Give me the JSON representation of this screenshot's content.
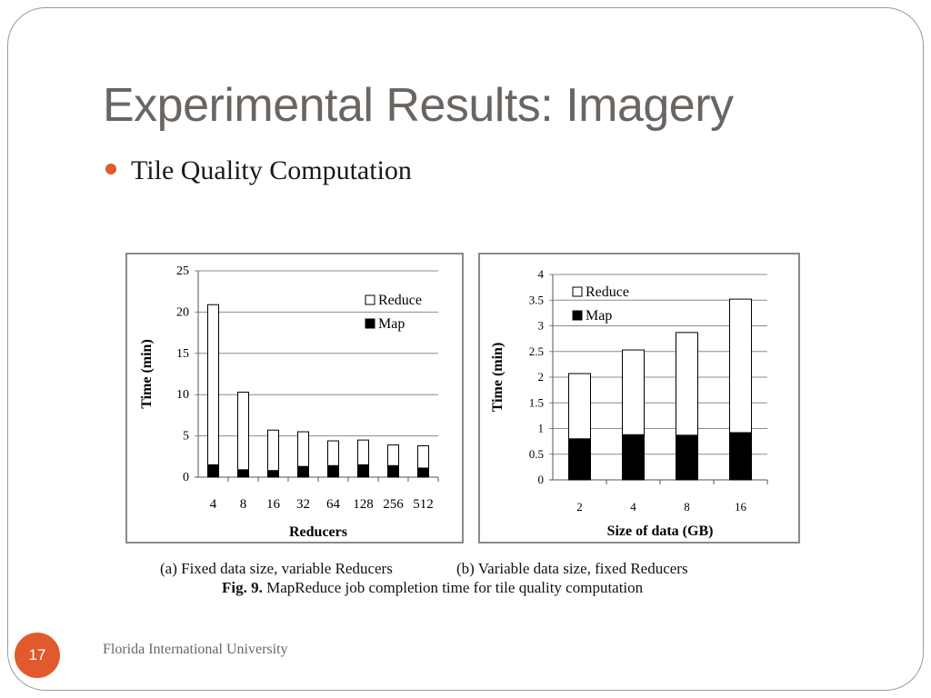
{
  "slide": {
    "title": "Experimental Results: Imagery",
    "bullet": "Tile Quality Computation",
    "caption_a": "(a) Fixed data size, variable Reducers",
    "caption_b": "(b) Variable data size, fixed Reducers",
    "fig_label": "Fig. 9.",
    "fig_text": " MapReduce job completion time for tile quality computation",
    "page_number": "17",
    "footer": "Florida International University",
    "accent_color": "#e15a2e"
  },
  "chart_data": [
    {
      "type": "bar",
      "stacked": true,
      "categories": [
        "4",
        "8",
        "16",
        "32",
        "64",
        "128",
        "256",
        "512"
      ],
      "series": [
        {
          "name": "Map",
          "values": [
            1.5,
            0.9,
            0.8,
            1.3,
            1.4,
            1.5,
            1.4,
            1.1
          ],
          "color": "#000000"
        },
        {
          "name": "Reduce",
          "values": [
            19.4,
            9.4,
            4.9,
            4.2,
            3.0,
            3.0,
            2.5,
            2.7
          ],
          "color": "#ffffff"
        }
      ],
      "xlabel": "Reducers",
      "ylabel": "Time (min)",
      "ylim": [
        0,
        25
      ],
      "yticks": [
        "0",
        "5",
        "10",
        "15",
        "20",
        "25"
      ],
      "grid": true,
      "legend": "top-right"
    },
    {
      "type": "bar",
      "stacked": true,
      "categories": [
        "2",
        "4",
        "8",
        "16"
      ],
      "series": [
        {
          "name": "Map",
          "values": [
            0.8,
            0.88,
            0.87,
            0.92
          ],
          "color": "#000000"
        },
        {
          "name": "Reduce",
          "values": [
            1.27,
            1.65,
            2.0,
            2.6
          ],
          "color": "#ffffff"
        }
      ],
      "xlabel": "Size of data (GB)",
      "ylabel": "Time (min)",
      "ylim": [
        0,
        4
      ],
      "yticks": [
        "0",
        "0.5",
        "1",
        "1.5",
        "2",
        "2.5",
        "3",
        "3.5",
        "4"
      ],
      "grid": true,
      "legend": "top-left"
    }
  ]
}
